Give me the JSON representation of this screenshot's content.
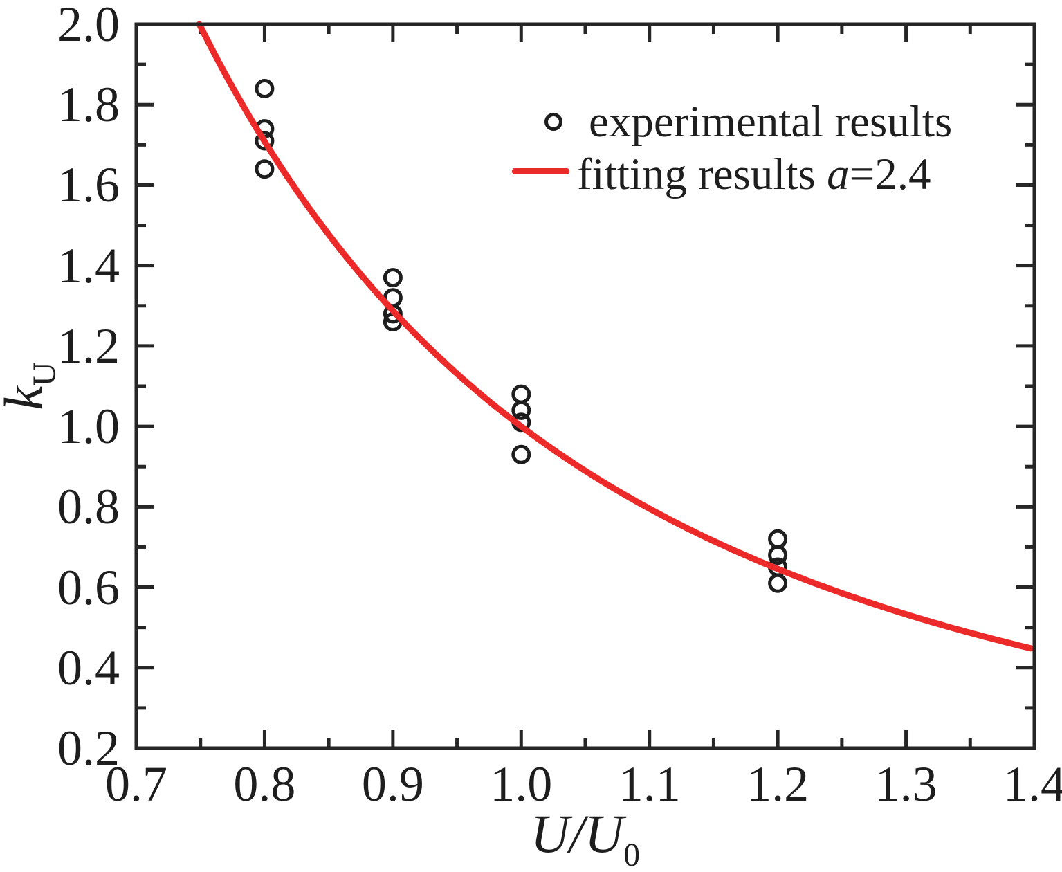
{
  "chart_data": {
    "type": "scatter",
    "title": "",
    "xlabel": {
      "main": "U/U",
      "sub": "0"
    },
    "ylabel": {
      "main": "k",
      "sub": "U"
    },
    "xlim": [
      0.7,
      1.4
    ],
    "ylim": [
      0.2,
      2.0
    ],
    "grid": false,
    "x_major_ticks": [
      0.7,
      0.8,
      0.9,
      1.0,
      1.1,
      1.2,
      1.3,
      1.4
    ],
    "x_tick_labels": [
      "0.7",
      "0.8",
      "0.9",
      "1.0",
      "1.1",
      "1.2",
      "1.3",
      "1.4"
    ],
    "x_minor_ticks": [
      0.75,
      0.85,
      0.95,
      1.05,
      1.15,
      1.25,
      1.35
    ],
    "y_major_ticks": [
      0.2,
      0.4,
      0.6,
      0.8,
      1.0,
      1.2,
      1.4,
      1.6,
      1.8,
      2.0
    ],
    "y_tick_labels": [
      "0.2",
      "0.4",
      "0.6",
      "0.8",
      "1.0",
      "1.2",
      "1.4",
      "1.6",
      "1.8",
      "2.0"
    ],
    "y_minor_ticks": [
      0.3,
      0.5,
      0.7,
      0.9,
      1.1,
      1.3,
      1.5,
      1.7,
      1.9
    ],
    "series": [
      {
        "name": "experimental results",
        "type": "scatter",
        "marker": "open-circle",
        "color": "#1e1e1e",
        "points": [
          [
            0.8,
            1.84
          ],
          [
            0.8,
            1.74
          ],
          [
            0.8,
            1.71
          ],
          [
            0.8,
            1.64
          ],
          [
            0.9,
            1.37
          ],
          [
            0.9,
            1.32
          ],
          [
            0.9,
            1.28
          ],
          [
            0.9,
            1.26
          ],
          [
            1.0,
            1.08
          ],
          [
            1.0,
            1.04
          ],
          [
            1.0,
            1.01
          ],
          [
            1.0,
            0.93
          ],
          [
            1.2,
            0.72
          ],
          [
            1.2,
            0.68
          ],
          [
            1.2,
            0.65
          ],
          [
            1.2,
            0.61
          ]
        ]
      },
      {
        "name": "fitting results a=2.4",
        "type": "line",
        "color": "#ed2a2a",
        "fit": {
          "model": "y = x^(-a)",
          "a": 2.4,
          "x_end": 1.4,
          "y_start": 2.0
        }
      }
    ],
    "legend": {
      "position": "top-right",
      "entries": [
        {
          "marker": "open-circle",
          "label": "experimental results"
        },
        {
          "marker": "line",
          "label_prefix": "fitting results ",
          "label_var": "a",
          "label_suffix": "=2.4"
        }
      ]
    }
  },
  "colors": {
    "fit_red": "#ed2a2a",
    "marker_black": "#1e1e1e",
    "axis": "#262626",
    "background": "#ffffff"
  }
}
